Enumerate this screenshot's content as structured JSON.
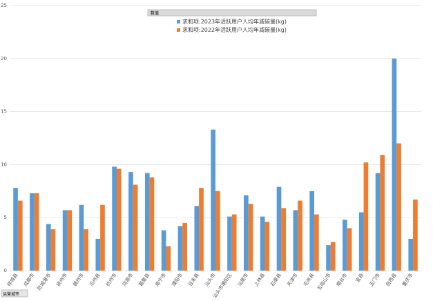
{
  "chart_data": {
    "type": "bar",
    "value_field_button": "数值",
    "axis_field_button": "运营城市",
    "categories": [
      "祥城县",
      "成都市",
      "防城港市",
      "抚州市",
      "赣州市",
      "瓜州县",
      "杭州市",
      "河源市",
      "葛聚县",
      "南宁市",
      "濮阳市",
      "且末县",
      "汕头市",
      "汕头市潮阳区",
      "汕尾市",
      "上林县",
      "石渠县",
      "天津市",
      "屯尧县",
      "五指山市",
      "烟台市",
      "宜县",
      "玉门市",
      "岳西县",
      "重庆市"
    ],
    "series": [
      {
        "name": "求和项:2023年活跃用户人均年减碳量(kg)",
        "color": "#5b9bd5",
        "values": [
          7.8,
          7.3,
          4.4,
          5.7,
          6.2,
          3.0,
          9.8,
          9.3,
          9.2,
          3.8,
          4.2,
          6.1,
          13.3,
          5.1,
          7.1,
          5.1,
          7.9,
          5.7,
          7.5,
          2.4,
          4.8,
          5.5,
          9.2,
          20.0,
          3.0
        ]
      },
      {
        "name": "求和项:2022年活跃用户人均年减碳量(kg)",
        "color": "#ed7d31",
        "values": [
          6.6,
          7.3,
          3.9,
          5.7,
          3.9,
          6.2,
          9.6,
          8.1,
          8.8,
          2.3,
          4.5,
          7.8,
          7.5,
          5.3,
          6.3,
          4.6,
          5.9,
          6.6,
          5.3,
          2.7,
          4.0,
          10.2,
          10.9,
          12.0,
          6.7
        ]
      }
    ],
    "ylim": [
      0,
      25
    ],
    "yticks": [
      0,
      5,
      10,
      15,
      20,
      25
    ],
    "grid": true
  }
}
